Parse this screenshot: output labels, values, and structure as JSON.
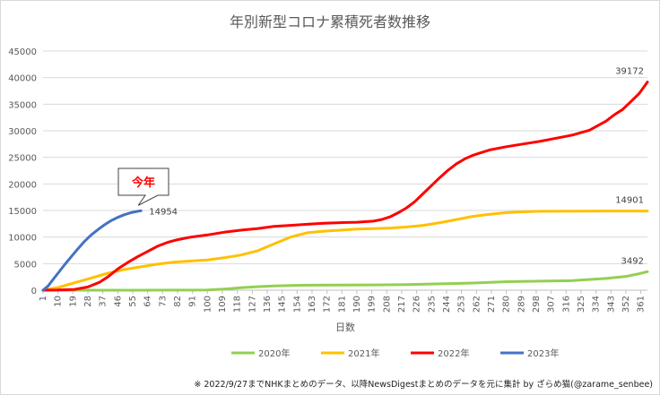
{
  "chart_data": {
    "type": "line",
    "title": "年別新型コロナ累積死者数推移",
    "xlabel": "日数",
    "ylabel": "",
    "ylim": [
      0,
      45000
    ],
    "xlim": [
      1,
      365
    ],
    "yticks": [
      0,
      5000,
      10000,
      15000,
      20000,
      25000,
      30000,
      35000,
      40000,
      45000
    ],
    "xticks": [
      1,
      10,
      19,
      28,
      37,
      46,
      55,
      64,
      73,
      82,
      91,
      100,
      109,
      118,
      127,
      136,
      145,
      154,
      163,
      172,
      181,
      190,
      199,
      208,
      217,
      226,
      235,
      244,
      253,
      262,
      271,
      280,
      289,
      298,
      307,
      316,
      325,
      334,
      343,
      352,
      361
    ],
    "grid": "horizontal",
    "legend": "bottom",
    "series": [
      {
        "name": "2020年",
        "color": "#92d050",
        "end_label": "3492",
        "x": [
          1,
          40,
          60,
          80,
          90,
          100,
          110,
          120,
          130,
          140,
          150,
          160,
          200,
          220,
          240,
          260,
          280,
          300,
          320,
          340,
          352,
          360,
          365
        ],
        "y": [
          0,
          0,
          5,
          10,
          20,
          50,
          200,
          450,
          650,
          800,
          900,
          950,
          1000,
          1050,
          1200,
          1350,
          1600,
          1700,
          1800,
          2200,
          2600,
          3100,
          3492
        ]
      },
      {
        "name": "2021年",
        "color": "#ffc000",
        "end_label": "14901",
        "x": [
          1,
          10,
          20,
          30,
          40,
          50,
          60,
          70,
          80,
          90,
          100,
          110,
          120,
          130,
          140,
          150,
          160,
          170,
          180,
          190,
          200,
          210,
          220,
          230,
          240,
          250,
          260,
          270,
          280,
          290,
          300,
          320,
          340,
          365
        ],
        "y": [
          0,
          500,
          1400,
          2300,
          3200,
          3900,
          4400,
          4900,
          5300,
          5500,
          5700,
          6100,
          6600,
          7400,
          8700,
          10000,
          10800,
          11100,
          11300,
          11500,
          11600,
          11700,
          11900,
          12200,
          12700,
          13300,
          13900,
          14300,
          14600,
          14750,
          14850,
          14880,
          14895,
          14901
        ]
      },
      {
        "name": "2022年",
        "color": "#ff0000",
        "end_label": "39172",
        "x": [
          1,
          10,
          20,
          28,
          35,
          40,
          46,
          52,
          58,
          64,
          70,
          76,
          82,
          90,
          100,
          110,
          120,
          130,
          140,
          150,
          160,
          170,
          180,
          190,
          200,
          205,
          210,
          215,
          220,
          225,
          230,
          235,
          240,
          245,
          250,
          255,
          260,
          265,
          270,
          280,
          290,
          300,
          310,
          320,
          330,
          340,
          345,
          350,
          355,
          360,
          365
        ],
        "y": [
          0,
          30,
          150,
          600,
          1500,
          2500,
          4000,
          5200,
          6300,
          7300,
          8300,
          9000,
          9500,
          10000,
          10400,
          10900,
          11300,
          11600,
          12000,
          12200,
          12400,
          12600,
          12700,
          12800,
          13000,
          13300,
          13800,
          14600,
          15500,
          16700,
          18200,
          19700,
          21200,
          22600,
          23800,
          24700,
          25400,
          25900,
          26400,
          27000,
          27500,
          28000,
          28600,
          29200,
          30100,
          31800,
          33000,
          34000,
          35500,
          37000,
          39172
        ]
      },
      {
        "name": "2023年",
        "color": "#4472c4",
        "end_label": "14954",
        "annotation": "今年",
        "x": [
          1,
          4,
          7,
          10,
          14,
          18,
          22,
          26,
          30,
          34,
          38,
          42,
          46,
          50,
          54,
          58,
          60
        ],
        "y": [
          0,
          800,
          2000,
          3200,
          4800,
          6300,
          7800,
          9200,
          10400,
          11400,
          12300,
          13100,
          13700,
          14200,
          14600,
          14850,
          14954
        ]
      }
    ],
    "footnote": "※ 2022/9/27までNHKまとめのデータ、以降NewsDigestまとめのデータを元に集計 by ざらめ猫(@zarame_senbee)"
  }
}
